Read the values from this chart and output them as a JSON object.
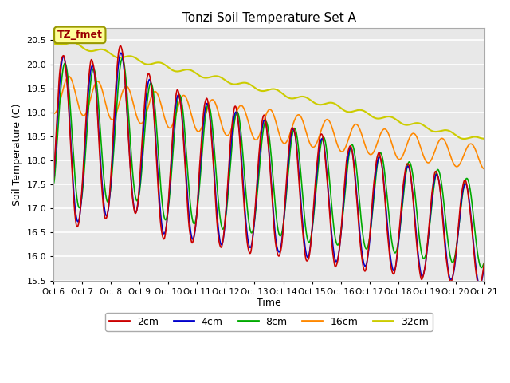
{
  "title": "Tonzi Soil Temperature Set A",
  "ylabel": "Soil Temperature (C)",
  "xlabel": "Time",
  "annotation_text": "TZ_fmet",
  "annotation_bg": "#ffff99",
  "annotation_border": "#999900",
  "background_color": "#e8e8e8",
  "plot_bg": "#e8e8e8",
  "ylim": [
    15.5,
    20.75
  ],
  "xlim": [
    0,
    360
  ],
  "xtick_labels": [
    "Oct 6",
    "Oct 7",
    "Oct 8",
    "Oct 9",
    "Oct 10",
    "Oct 11",
    "Oct 12",
    "Oct 13",
    "Oct 14",
    "Oct 15",
    "Oct 16",
    "Oct 17",
    "Oct 18",
    "Oct 19",
    "Oct 20",
    "Oct 21"
  ],
  "xtick_positions": [
    0,
    24,
    48,
    72,
    96,
    120,
    144,
    168,
    192,
    216,
    240,
    264,
    288,
    312,
    336,
    360
  ],
  "ytick_labels": [
    "15.5",
    "16.0",
    "16.5",
    "17.0",
    "17.5",
    "18.0",
    "18.5",
    "19.0",
    "19.5",
    "20.0",
    "20.5"
  ],
  "ytick_positions": [
    15.5,
    16.0,
    16.5,
    17.0,
    17.5,
    18.0,
    18.5,
    19.0,
    19.5,
    20.0,
    20.5
  ],
  "legend_labels": [
    "2cm",
    "4cm",
    "8cm",
    "16cm",
    "32cm"
  ],
  "line_colors": [
    "#cc0000",
    "#0000cc",
    "#00aa00",
    "#ff8800",
    "#cccc00"
  ],
  "line_widths": [
    1.2,
    1.2,
    1.2,
    1.2,
    1.5
  ],
  "n_points": 1441,
  "time_days": 15,
  "figsize": [
    6.4,
    4.8
  ],
  "dpi": 100
}
